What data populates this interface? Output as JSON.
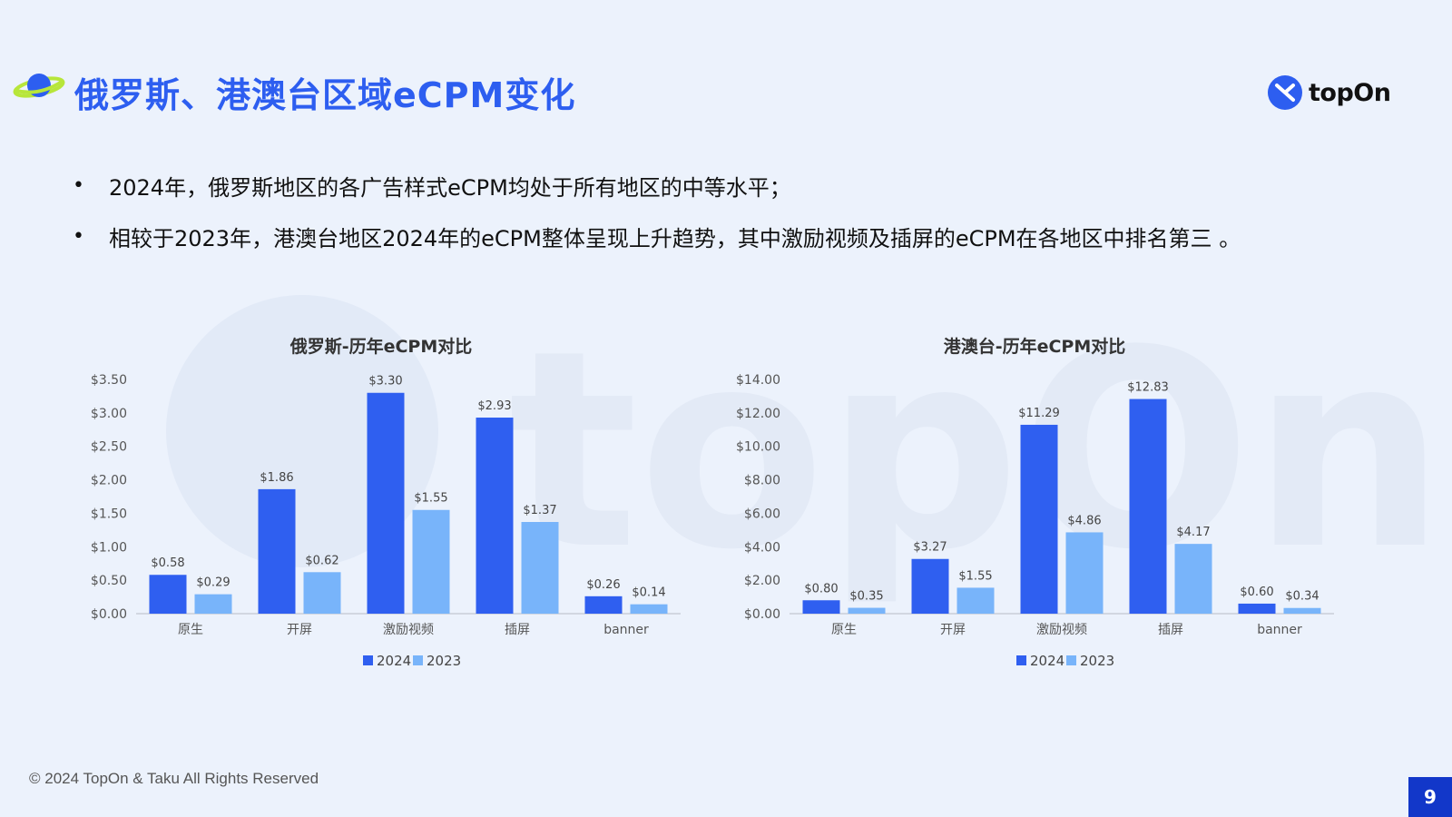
{
  "header": {
    "title": "俄罗斯、港澳台区域eCPM变化",
    "logo_text": "topOn"
  },
  "bullets": [
    "2024年，俄罗斯地区的各广告样式eCPM均处于所有地区的中等水平；",
    "相较于2023年，港澳台地区2024年的eCPM整体呈现上升趋势，其中激励视频及插屏的eCPM在各地区中排名第三 。"
  ],
  "colors": {
    "series_2024": "#2f5ff0",
    "series_2023": "#78b4fa",
    "title": "#2d5ef0",
    "page_badge": "#1237c9"
  },
  "chart_data": [
    {
      "type": "bar",
      "title": "俄罗斯-历年eCPM对比",
      "categories": [
        "原生",
        "开屏",
        "激励视频",
        "插屏",
        "banner"
      ],
      "series": [
        {
          "name": "2024",
          "values": [
            0.58,
            1.86,
            3.3,
            2.93,
            0.26
          ],
          "labels": [
            "$0.58",
            "$1.86",
            "$3.30",
            "$2.93",
            "$0.26"
          ]
        },
        {
          "name": "2023",
          "values": [
            0.29,
            0.62,
            1.55,
            1.37,
            0.14
          ],
          "labels": [
            "$0.29",
            "$0.62",
            "$1.55",
            "$1.37",
            "$0.14"
          ]
        }
      ],
      "ylim": [
        0,
        3.5
      ],
      "yticks": [
        "$0.00",
        "$0.50",
        "$1.00",
        "$1.50",
        "$2.00",
        "$2.50",
        "$3.00",
        "$3.50"
      ],
      "legend": "bottom"
    },
    {
      "type": "bar",
      "title": "港澳台-历年eCPM对比",
      "categories": [
        "原生",
        "开屏",
        "激励视频",
        "插屏",
        "banner"
      ],
      "series": [
        {
          "name": "2024",
          "values": [
            0.8,
            3.27,
            11.29,
            12.83,
            0.6
          ],
          "labels": [
            "$0.80",
            "$3.27",
            "$11.29",
            "$12.83",
            "$0.60"
          ]
        },
        {
          "name": "2023",
          "values": [
            0.35,
            1.55,
            4.86,
            4.17,
            0.34
          ],
          "labels": [
            "$0.35",
            "$1.55",
            "$4.86",
            "$4.17",
            "$0.34"
          ]
        }
      ],
      "ylim": [
        0,
        14
      ],
      "yticks": [
        "$0.00",
        "$2.00",
        "$4.00",
        "$6.00",
        "$8.00",
        "$10.00",
        "$12.00",
        "$14.00"
      ],
      "legend": "bottom"
    }
  ],
  "footer": {
    "copyright": "© 2024 TopOn & Taku All Rights Reserved",
    "page_number": "9"
  }
}
